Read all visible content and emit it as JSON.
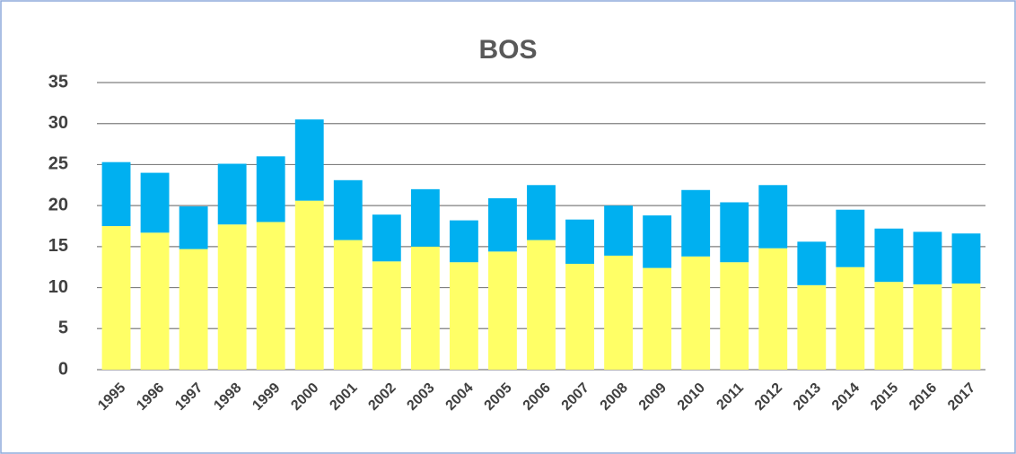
{
  "chart_data": {
    "type": "stacked_bar",
    "title": "BOS",
    "categories": [
      "1995",
      "1996",
      "1997",
      "1998",
      "1999",
      "2000",
      "2001",
      "2002",
      "2003",
      "2004",
      "2005",
      "2006",
      "2007",
      "2008",
      "2009",
      "2010",
      "2011",
      "2012",
      "2013",
      "2014",
      "2015",
      "2016",
      "2017"
    ],
    "series": [
      {
        "color": "#ffff66",
        "values": [
          17.5,
          16.7,
          14.7,
          17.7,
          18.0,
          20.6,
          15.8,
          13.2,
          15.0,
          13.1,
          14.4,
          15.8,
          12.9,
          13.9,
          12.4,
          13.8,
          13.1,
          14.8,
          10.3,
          12.5,
          10.7,
          10.4,
          10.5
        ]
      },
      {
        "color": "#00b0f0",
        "values": [
          7.8,
          7.3,
          5.2,
          7.4,
          8.0,
          9.9,
          7.3,
          5.7,
          7.0,
          5.1,
          6.5,
          6.7,
          5.4,
          6.1,
          6.4,
          8.1,
          7.3,
          7.7,
          5.3,
          7.0,
          6.5,
          6.4,
          6.1
        ]
      }
    ],
    "ylim": [
      0,
      35
    ],
    "yticks": [
      0,
      5,
      10,
      15,
      20,
      25,
      30,
      35
    ],
    "grid": true
  }
}
